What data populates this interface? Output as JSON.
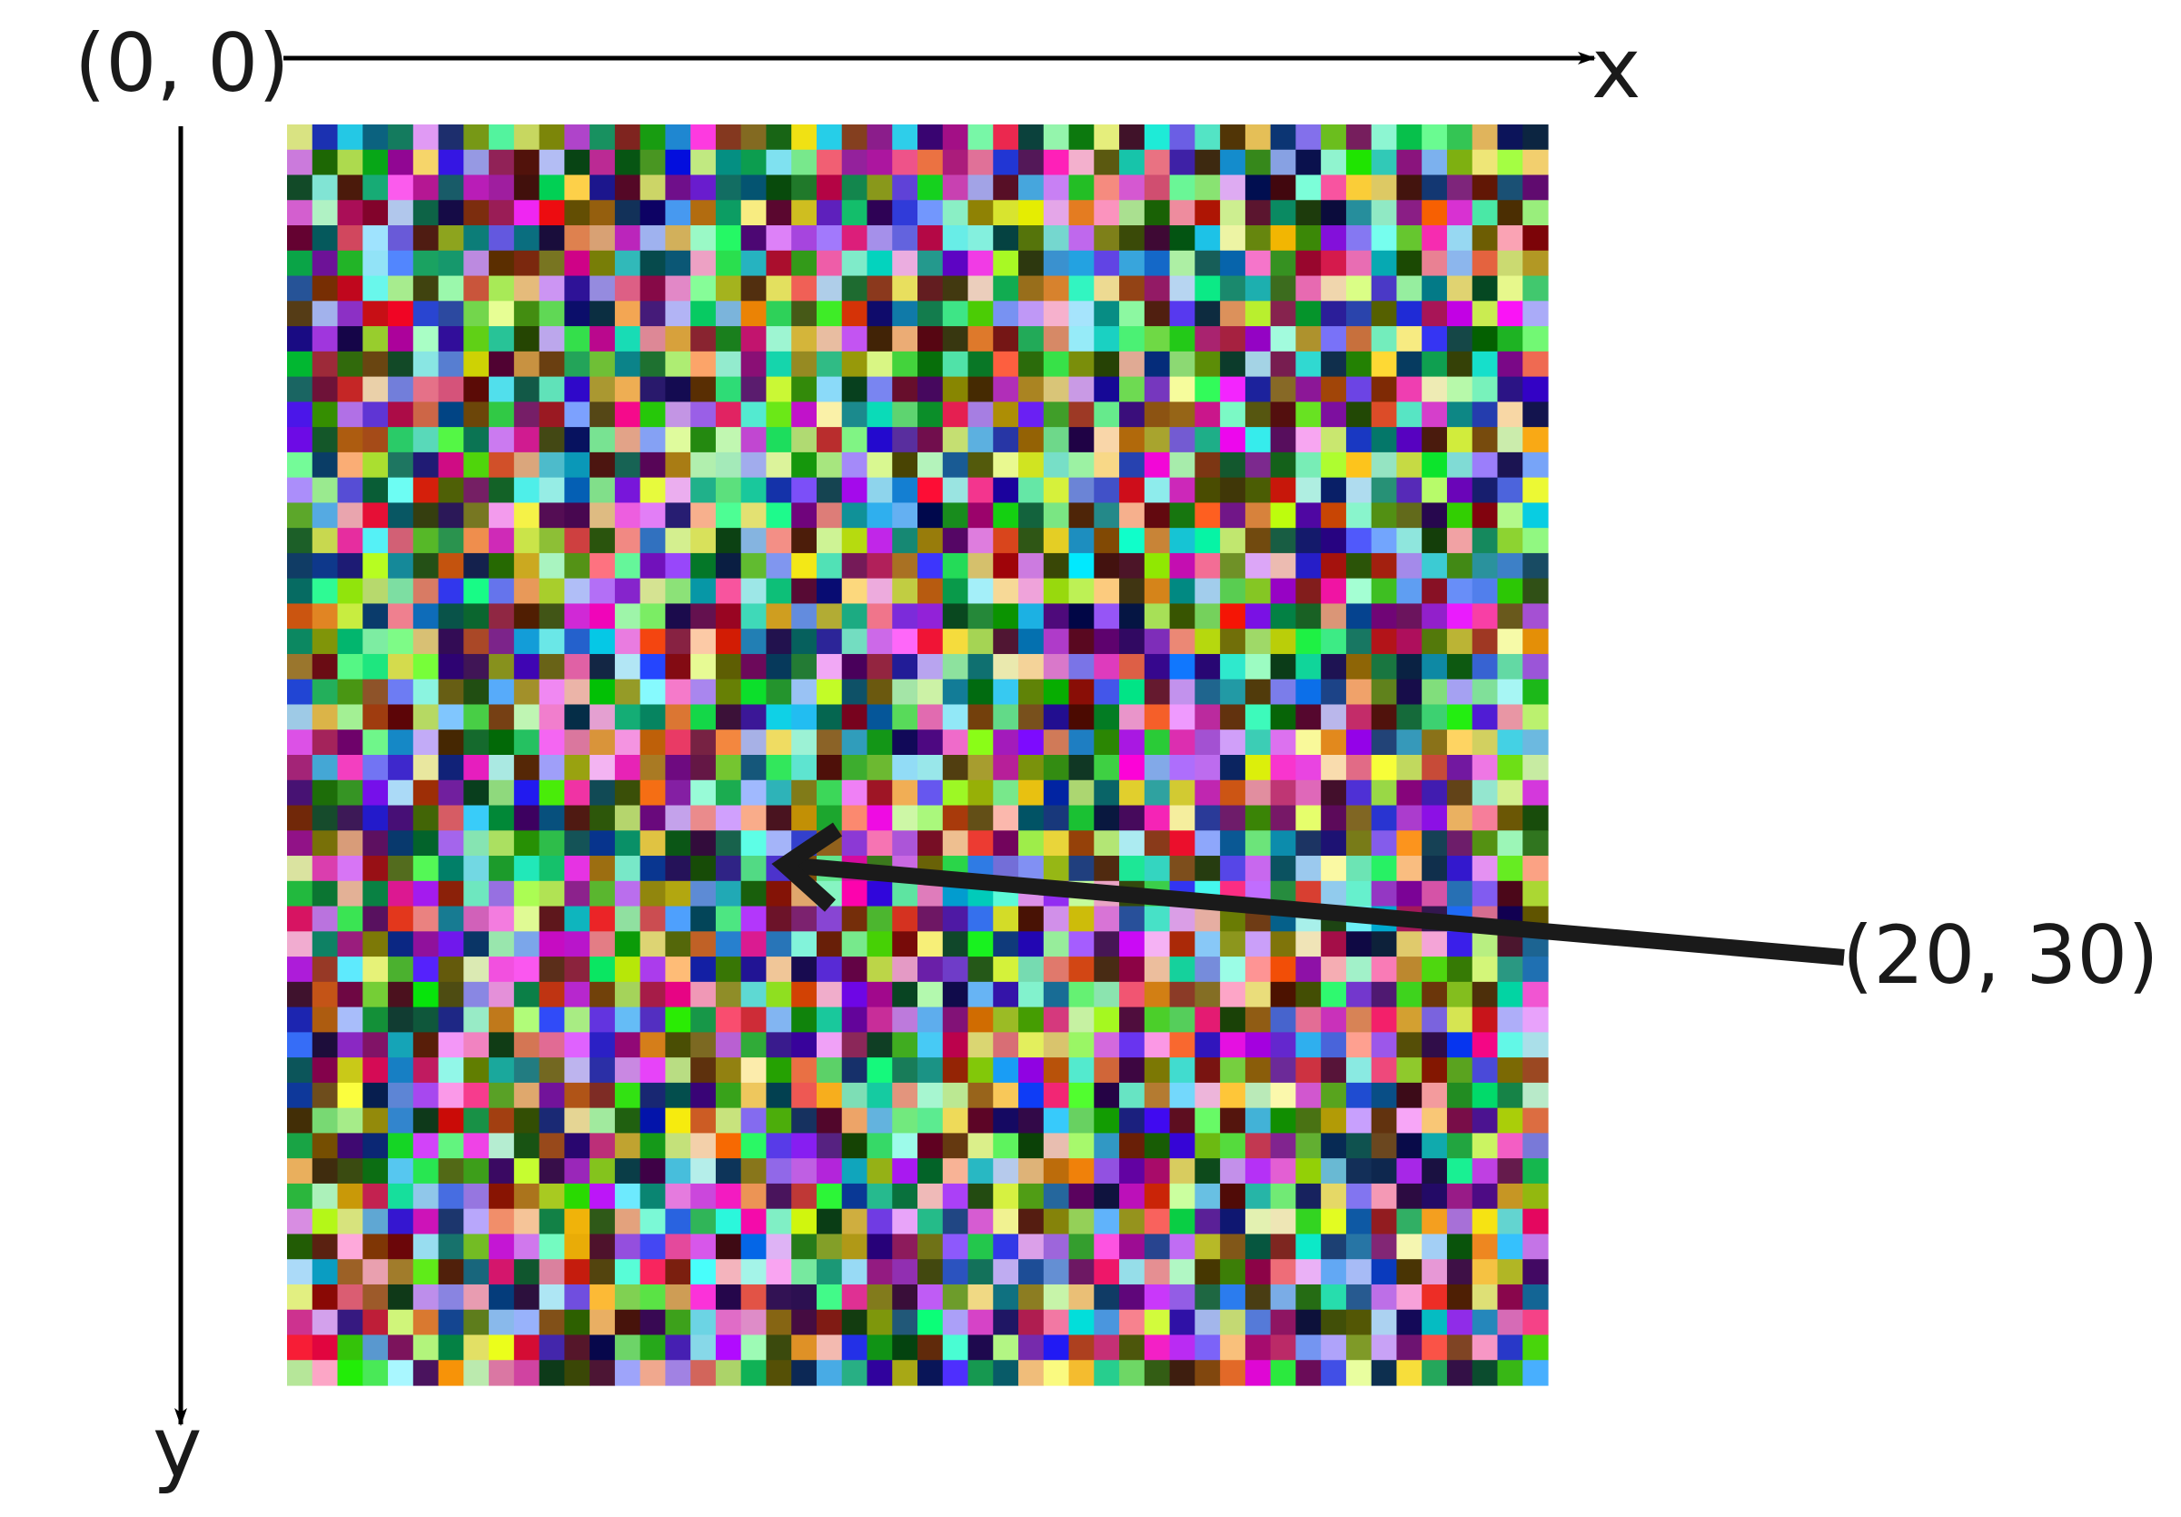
{
  "labels": {
    "origin": "(0, 0)",
    "x_axis": "x",
    "y_axis": "y",
    "point": "(20, 30)"
  },
  "grid": {
    "columns": 50,
    "rows": 50,
    "highlighted_cell": {
      "x": 20,
      "y": 30
    },
    "seed": 1337
  },
  "colors": {
    "axis": "#000000",
    "arrow": "#1a1a1a",
    "text": "#1a1a1a",
    "background": "#ffffff"
  }
}
